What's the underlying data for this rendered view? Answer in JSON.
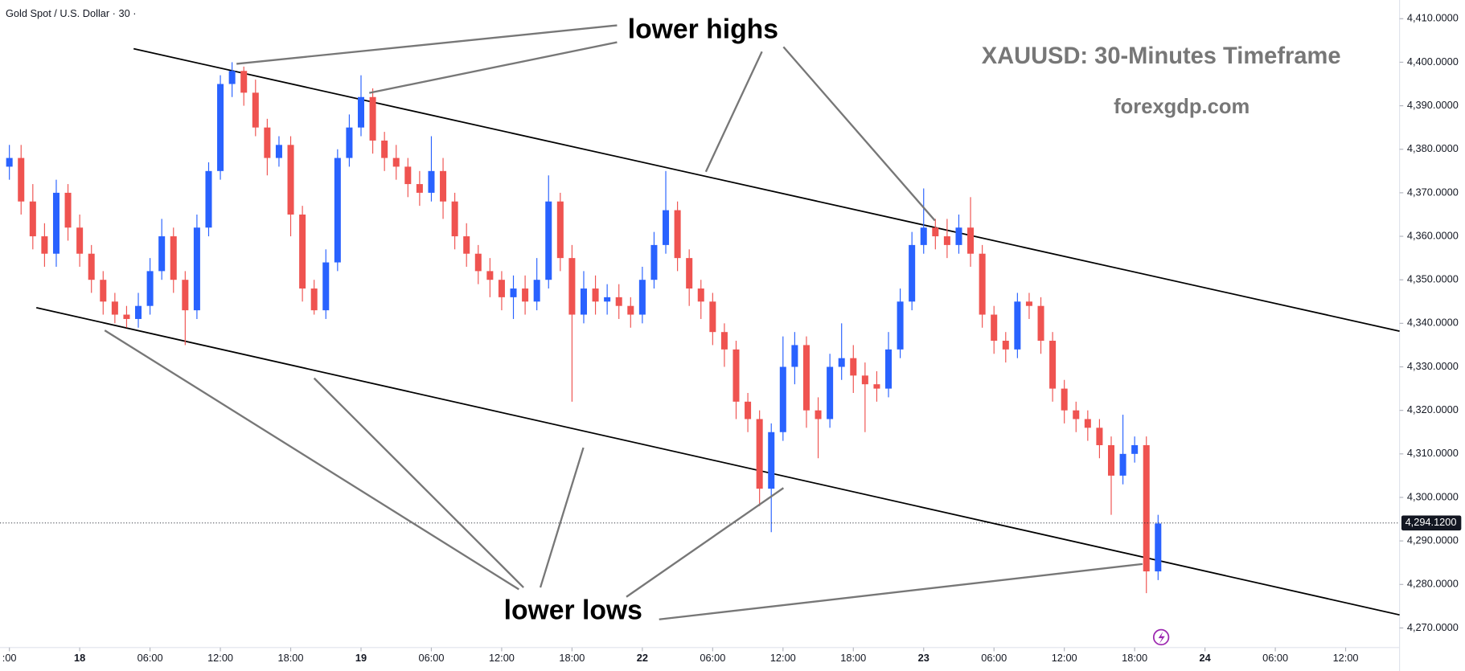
{
  "chart_data": {
    "type": "candlestick",
    "header": "Gold Spot / U.S. Dollar · 30 ·",
    "title": "XAUUSD: 30-Minutes Timeframe",
    "subtitle": "forexgdp.com",
    "annotations": [
      "lower highs",
      "lower lows"
    ],
    "up_color": "#2962ff",
    "down_color": "#ef5350",
    "x": [
      -6,
      -5,
      -4,
      -3,
      -2,
      -1,
      0,
      1,
      2,
      3,
      4,
      5,
      6,
      7,
      8,
      9,
      10,
      11,
      12,
      13,
      14,
      15,
      16,
      17,
      18,
      19,
      20,
      21,
      22,
      23,
      24,
      25,
      26,
      27,
      28,
      29,
      30,
      31,
      32,
      33,
      34,
      35,
      36,
      37,
      38,
      39,
      40,
      41,
      42,
      43,
      44,
      45,
      46,
      47,
      48,
      49,
      50,
      51,
      52,
      53,
      54,
      55,
      56,
      57,
      58,
      59,
      60,
      61,
      62,
      63,
      64,
      65,
      66,
      67,
      68,
      69,
      70,
      71,
      72,
      73,
      74,
      75,
      76,
      77,
      78,
      79,
      80,
      81,
      82,
      83,
      84,
      85,
      86,
      87,
      88,
      89,
      90,
      91,
      92
    ],
    "open": [
      4376,
      4378,
      4368,
      4360,
      4356,
      4370,
      4362,
      4356,
      4350,
      4345,
      4342,
      4341,
      4344,
      4352,
      4360,
      4350,
      4343,
      4362,
      4375,
      4395,
      4398,
      4393,
      4385,
      4378,
      4381,
      4365,
      4348,
      4343,
      4354,
      4378,
      4385,
      4392,
      4382,
      4378,
      4376,
      4372,
      4370,
      4375,
      4368,
      4360,
      4356,
      4352,
      4350,
      4346,
      4348,
      4345,
      4350,
      4368,
      4355,
      4342,
      4348,
      4345,
      4346,
      4344,
      4342,
      4350,
      4358,
      4366,
      4355,
      4348,
      4345,
      4338,
      4334,
      4322,
      4318,
      4302,
      4315,
      4330,
      4335,
      4320,
      4318,
      4330,
      4332,
      4328,
      4326,
      4325,
      4334,
      4345,
      4358,
      4362,
      4360,
      4358,
      4362,
      4356,
      4342,
      4336,
      4334,
      4345,
      4344,
      4336,
      4325,
      4320,
      4318,
      4316,
      4312,
      4305,
      4310,
      4312,
      4283
    ],
    "high": [
      4381,
      4381,
      4372,
      4363,
      4373,
      4372,
      4365,
      4358,
      4352,
      4347,
      4344,
      4347,
      4355,
      4364,
      4362,
      4352,
      4365,
      4377,
      4397,
      4400,
      4399,
      4396,
      4387,
      4383,
      4383,
      4367,
      4350,
      4357,
      4380,
      4388,
      4397,
      4394,
      4384,
      4381,
      4378,
      4375,
      4383,
      4378,
      4370,
      4363,
      4358,
      4355,
      4352,
      4351,
      4351,
      4355,
      4374,
      4370,
      4358,
      4352,
      4351,
      4349,
      4349,
      4346,
      4353,
      4361,
      4375,
      4368,
      4357,
      4350,
      4347,
      4340,
      4336,
      4324,
      4320,
      4317,
      4337,
      4338,
      4337,
      4323,
      4333,
      4340,
      4335,
      4331,
      4329,
      4338,
      4348,
      4361,
      4371,
      4364,
      4364,
      4365,
      4369,
      4358,
      4344,
      4338,
      4347,
      4347,
      4346,
      4338,
      4327,
      4322,
      4320,
      4318,
      4314,
      4319,
      4314,
      4314,
      4296
    ],
    "low": [
      4373,
      4365,
      4357,
      4353,
      4353,
      4359,
      4353,
      4347,
      4342,
      4340,
      4339,
      4339,
      4342,
      4350,
      4347,
      4335,
      4341,
      4360,
      4373,
      4392,
      4390,
      4383,
      4374,
      4376,
      4360,
      4345,
      4342,
      4341,
      4352,
      4376,
      4383,
      4379,
      4375,
      4373,
      4369,
      4367,
      4368,
      4364,
      4357,
      4353,
      4349,
      4346,
      4343,
      4341,
      4342,
      4343,
      4348,
      4352,
      4322,
      4340,
      4342,
      4342,
      4341,
      4339,
      4340,
      4348,
      4356,
      4352,
      4344,
      4341,
      4335,
      4330,
      4318,
      4315,
      4298,
      4292,
      4313,
      4326,
      4316,
      4309,
      4316,
      4327,
      4324,
      4315,
      4322,
      4323,
      4332,
      4343,
      4356,
      4357,
      4355,
      4356,
      4353,
      4339,
      4333,
      4331,
      4332,
      4341,
      4333,
      4322,
      4317,
      4315,
      4313,
      4309,
      4296,
      4303,
      4308,
      4278,
      4281
    ],
    "close": [
      4378,
      4368,
      4360,
      4356,
      4370,
      4362,
      4356,
      4350,
      4345,
      4342,
      4341,
      4344,
      4352,
      4360,
      4350,
      4343,
      4362,
      4375,
      4395,
      4398,
      4393,
      4385,
      4378,
      4381,
      4365,
      4348,
      4343,
      4354,
      4378,
      4385,
      4392,
      4382,
      4378,
      4376,
      4372,
      4370,
      4375,
      4368,
      4360,
      4356,
      4352,
      4350,
      4346,
      4348,
      4345,
      4350,
      4368,
      4355,
      4342,
      4348,
      4345,
      4346,
      4344,
      4342,
      4350,
      4358,
      4366,
      4355,
      4348,
      4345,
      4338,
      4334,
      4322,
      4318,
      4302,
      4315,
      4330,
      4335,
      4320,
      4318,
      4330,
      4332,
      4328,
      4326,
      4325,
      4334,
      4345,
      4358,
      4362,
      4360,
      4358,
      4362,
      4356,
      4342,
      4336,
      4334,
      4345,
      4344,
      4336,
      4325,
      4320,
      4318,
      4316,
      4312,
      4305,
      4310,
      4312,
      4283,
      4294
    ],
    "xlim": [
      -6.8,
      112.6
    ],
    "ylim": [
      4265.5,
      4414.3
    ],
    "yticks": [
      {
        "value": 4270,
        "label": "4,270.0000"
      },
      {
        "value": 4280,
        "label": "4,280.0000"
      },
      {
        "value": 4290,
        "label": "4,290.0000"
      },
      {
        "value": 4300,
        "label": "4,300.0000"
      },
      {
        "value": 4310,
        "label": "4,310.0000"
      },
      {
        "value": 4320,
        "label": "4,320.0000"
      },
      {
        "value": 4330,
        "label": "4,330.0000"
      },
      {
        "value": 4340,
        "label": "4,340.0000"
      },
      {
        "value": 4350,
        "label": "4,350.0000"
      },
      {
        "value": 4360,
        "label": "4,360.0000"
      },
      {
        "value": 4370,
        "label": "4,370.0000"
      },
      {
        "value": 4380,
        "label": "4,380.0000"
      },
      {
        "value": 4390,
        "label": "4,390.0000"
      },
      {
        "value": 4400,
        "label": "4,400.0000"
      },
      {
        "value": 4410,
        "label": "4,410.0000"
      }
    ],
    "xticks": [
      {
        "value": -6,
        "label": ":00"
      },
      {
        "value": 0,
        "label": "18"
      },
      {
        "value": 6,
        "label": "06:00"
      },
      {
        "value": 12,
        "label": "12:00"
      },
      {
        "value": 18,
        "label": "18:00"
      },
      {
        "value": 24,
        "label": "19"
      },
      {
        "value": 30,
        "label": "06:00"
      },
      {
        "value": 36,
        "label": "12:00"
      },
      {
        "value": 42,
        "label": "18:00"
      },
      {
        "value": 48,
        "label": "22"
      },
      {
        "value": 54,
        "label": "06:00"
      },
      {
        "value": 60,
        "label": "12:00"
      },
      {
        "value": 66,
        "label": "18:00"
      },
      {
        "value": 72,
        "label": "23"
      },
      {
        "value": 78,
        "label": "06:00"
      },
      {
        "value": 84,
        "label": "12:00"
      },
      {
        "value": 90,
        "label": "18:00"
      },
      {
        "value": 96,
        "label": "24"
      },
      {
        "value": 102,
        "label": "06:00"
      },
      {
        "value": 108,
        "label": "12:00"
      }
    ],
    "last_price": {
      "value": 4294.12,
      "label": "4,294.1200"
    },
    "trendlines": [
      {
        "x": [
          4.6,
          112.6
        ],
        "y": [
          4403.1,
          4338.2
        ]
      },
      {
        "x": [
          -3.7,
          112.6
        ],
        "y": [
          4343.6,
          4273.0
        ]
      }
    ]
  }
}
